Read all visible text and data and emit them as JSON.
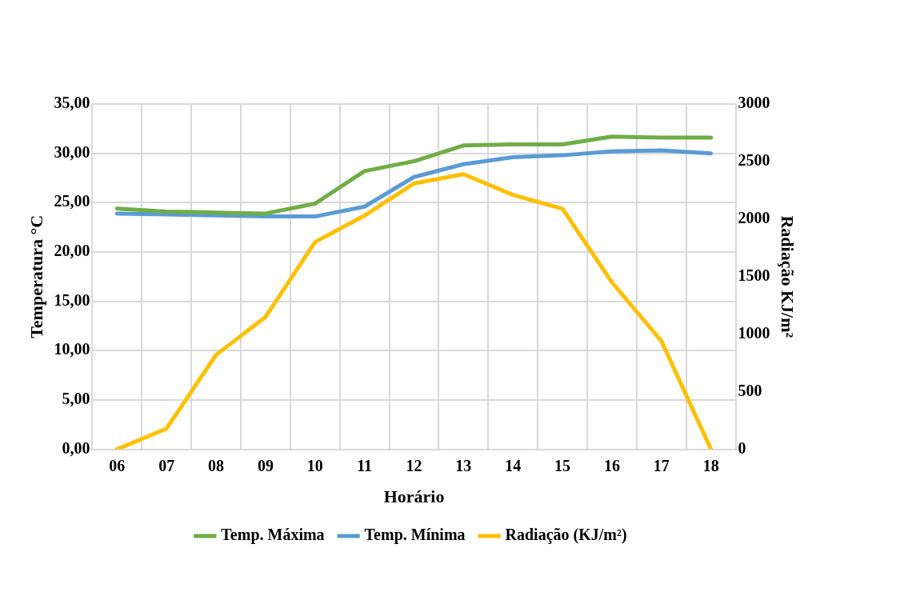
{
  "chart_data": {
    "type": "line",
    "xlabel": "Horário",
    "ylabel": "Temperatura °C",
    "y2label": "Radiação KJ/m²",
    "categories": [
      "06",
      "07",
      "08",
      "09",
      "10",
      "11",
      "12",
      "13",
      "14",
      "15",
      "16",
      "17",
      "18"
    ],
    "series": [
      {
        "name": "Temp. Máxima",
        "color": "#70ad47",
        "values": [
          24.4,
          24.1,
          24.0,
          23.9,
          24.9,
          28.2,
          29.2,
          30.8,
          30.9,
          30.9,
          31.7,
          31.6,
          31.6
        ]
      },
      {
        "name": "Temp. Mínima",
        "color": "#5b9bd5",
        "values": [
          23.9,
          23.8,
          23.7,
          23.6,
          23.6,
          24.6,
          27.6,
          28.9,
          29.6,
          29.8,
          30.2,
          30.3,
          30.0
        ]
      },
      {
        "name": "Radiação (KJ/m²)",
        "color": "#ffc000",
        "axis": "y2",
        "values": [
          0,
          180,
          820,
          1150,
          1800,
          2030,
          2310,
          2390,
          2210,
          2090,
          1450,
          940,
          0
        ]
      }
    ],
    "ylim": [
      0,
      35
    ],
    "yticks": [
      {
        "value": 0,
        "label": "0,00"
      },
      {
        "value": 5,
        "label": "5,00"
      },
      {
        "value": 10,
        "label": "10,00"
      },
      {
        "value": 15,
        "label": "15,00"
      },
      {
        "value": 20,
        "label": "20,00"
      },
      {
        "value": 25,
        "label": "25,00"
      },
      {
        "value": 30,
        "label": "30,00"
      },
      {
        "value": 35,
        "label": "35,00"
      }
    ],
    "y2lim": [
      0,
      3000
    ],
    "y2ticks": [
      0,
      500,
      1000,
      1500,
      2000,
      2500,
      3000
    ],
    "grid": true,
    "legend": "bottom",
    "marker": "none",
    "line_style": "solid"
  }
}
